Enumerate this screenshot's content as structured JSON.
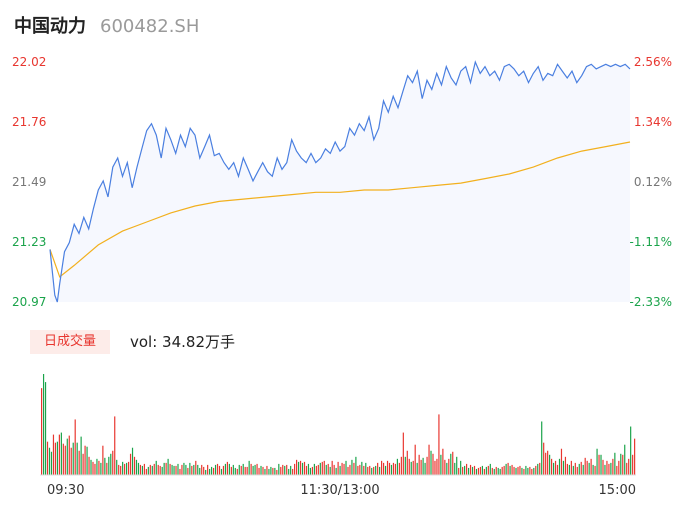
{
  "header": {
    "name": "中国动力",
    "code": "600482.SH"
  },
  "volume_panel": {
    "badge": "日成交量",
    "value_label": "vol: 34.82万手"
  },
  "colors": {
    "up": "#e8362f",
    "down": "#1aa34a",
    "flat": "#777777",
    "price_line": "#4a7fe0",
    "price_fill": "#f6f8fe",
    "avg_line": "#f2b01e"
  },
  "chart_data": [
    {
      "type": "line",
      "title": "",
      "left_axis_ticks": [
        "22.02",
        "21.76",
        "21.49",
        "21.23",
        "20.97"
      ],
      "right_axis_ticks": [
        "2.56%",
        "1.34%",
        "0.12%",
        "-1.11%",
        "-2.33%"
      ],
      "ylim": [
        20.97,
        22.02
      ],
      "x_range": [
        0,
        240
      ],
      "x_ticks": [
        "09:30",
        "11:30/13:00",
        "15:00"
      ],
      "series": [
        {
          "role": "price",
          "x": [
            0,
            2,
            3,
            4,
            6,
            8,
            10,
            12,
            14,
            16,
            18,
            20,
            22,
            24,
            26,
            28,
            30,
            32,
            34,
            36,
            38,
            40,
            42,
            44,
            46,
            48,
            50,
            52,
            54,
            56,
            58,
            60,
            62,
            64,
            66,
            68,
            70,
            72,
            74,
            76,
            78,
            80,
            82,
            84,
            86,
            88,
            90,
            92,
            94,
            96,
            98,
            100,
            102,
            104,
            106,
            108,
            110,
            112,
            114,
            116,
            118,
            120,
            122,
            124,
            126,
            128,
            130,
            132,
            134,
            136,
            138,
            140,
            142,
            144,
            146,
            148,
            150,
            152,
            154,
            156,
            158,
            160,
            162,
            164,
            166,
            168,
            170,
            172,
            174,
            176,
            178,
            180,
            182,
            184,
            186,
            188,
            190,
            192,
            194,
            196,
            198,
            200,
            202,
            204,
            206,
            208,
            210,
            212,
            214,
            216,
            218,
            220,
            222,
            224,
            226,
            228,
            230,
            232,
            234,
            236,
            238,
            240
          ],
          "y": [
            21.2,
            21.0,
            20.97,
            21.05,
            21.19,
            21.23,
            21.31,
            21.27,
            21.34,
            21.29,
            21.38,
            21.46,
            21.5,
            21.43,
            21.56,
            21.6,
            21.52,
            21.58,
            21.47,
            21.56,
            21.64,
            21.72,
            21.75,
            21.7,
            21.6,
            21.73,
            21.68,
            21.62,
            21.7,
            21.65,
            21.73,
            21.7,
            21.6,
            21.65,
            21.7,
            21.61,
            21.62,
            21.58,
            21.55,
            21.58,
            21.52,
            21.6,
            21.55,
            21.5,
            21.54,
            21.58,
            21.54,
            21.52,
            21.6,
            21.55,
            21.58,
            21.68,
            21.63,
            21.6,
            21.58,
            21.62,
            21.58,
            21.6,
            21.64,
            21.62,
            21.67,
            21.63,
            21.65,
            21.73,
            21.7,
            21.75,
            21.72,
            21.78,
            21.68,
            21.73,
            21.85,
            21.8,
            21.87,
            21.82,
            21.89,
            21.96,
            21.93,
            21.98,
            21.86,
            21.94,
            21.9,
            21.97,
            21.92,
            22.0,
            21.95,
            21.92,
            21.98,
            22.0,
            21.93,
            22.02,
            21.97,
            22.0,
            21.96,
            21.98,
            21.94,
            22.0,
            22.01,
            21.99,
            21.96,
            21.98,
            21.93,
            21.97,
            22.0,
            21.94,
            21.97,
            21.96,
            22.01,
            21.98,
            21.95,
            21.98,
            21.93,
            21.96,
            22.0,
            22.01,
            21.99,
            22.0,
            22.01,
            22.0,
            22.01,
            22.0,
            22.01,
            21.99
          ]
        },
        {
          "role": "average",
          "x": [
            0,
            4,
            10,
            20,
            30,
            40,
            50,
            60,
            70,
            80,
            90,
            100,
            110,
            120,
            130,
            140,
            150,
            160,
            170,
            180,
            190,
            200,
            210,
            220,
            230,
            240
          ],
          "y": [
            21.2,
            21.08,
            21.13,
            21.22,
            21.28,
            21.32,
            21.36,
            21.39,
            21.41,
            21.42,
            21.43,
            21.44,
            21.45,
            21.45,
            21.46,
            21.46,
            21.47,
            21.48,
            21.49,
            21.51,
            21.53,
            21.56,
            21.6,
            21.63,
            21.65,
            21.67
          ]
        }
      ]
    },
    {
      "type": "bar",
      "title": "",
      "ylim": [
        0,
        100
      ],
      "values": [
        86,
        100,
        92,
        33,
        27,
        23,
        40,
        32,
        33,
        40,
        42,
        31,
        29,
        36,
        39,
        27,
        32,
        55,
        32,
        24,
        38,
        21,
        29,
        28,
        18,
        15,
        13,
        11,
        16,
        14,
        12,
        29,
        17,
        12,
        18,
        21,
        24,
        58,
        15,
        10,
        9,
        13,
        11,
        12,
        13,
        21,
        27,
        18,
        15,
        12,
        10,
        9,
        11,
        6,
        8,
        10,
        9,
        11,
        14,
        10,
        9,
        8,
        12,
        12,
        16,
        11,
        10,
        9,
        9,
        11,
        6,
        10,
        12,
        10,
        7,
        12,
        9,
        10,
        14,
        10,
        7,
        10,
        8,
        5,
        10,
        6,
        8,
        7,
        10,
        11,
        9,
        6,
        9,
        11,
        13,
        11,
        8,
        10,
        7,
        6,
        10,
        9,
        11,
        8,
        8,
        14,
        11,
        9,
        10,
        11,
        7,
        9,
        8,
        6,
        9,
        6,
        8,
        7,
        7,
        5,
        11,
        8,
        10,
        9,
        10,
        6,
        9,
        6,
        11,
        15,
        13,
        14,
        12,
        13,
        9,
        11,
        7,
        8,
        11,
        9,
        10,
        12,
        13,
        14,
        10,
        11,
        8,
        14,
        10,
        7,
        13,
        9,
        12,
        11,
        14,
        8,
        10,
        15,
        12,
        18,
        9,
        10,
        13,
        9,
        12,
        8,
        9,
        7,
        8,
        9,
        12,
        8,
        14,
        12,
        9,
        14,
        12,
        10,
        12,
        11,
        16,
        12,
        18,
        42,
        18,
        24,
        16,
        13,
        14,
        30,
        12,
        20,
        15,
        17,
        12,
        18,
        30,
        24,
        21,
        14,
        16,
        60,
        20,
        26,
        15,
        12,
        16,
        21,
        23,
        12,
        18,
        7,
        14,
        8,
        9,
        11,
        7,
        10,
        8,
        9,
        6,
        7,
        8,
        9,
        6,
        8,
        9,
        11,
        7,
        6,
        8,
        7,
        6,
        8,
        9,
        11,
        12,
        9,
        10,
        8,
        7,
        8,
        9,
        7,
        6,
        9,
        7,
        8,
        6,
        7,
        9,
        11,
        12,
        53,
        32,
        22,
        24,
        20,
        16,
        12,
        14,
        10,
        16,
        26,
        14,
        18,
        11,
        10,
        14,
        9,
        12,
        8,
        11,
        13,
        10,
        17,
        14,
        12,
        16,
        10,
        9,
        26,
        20,
        20,
        15,
        10,
        14,
        11,
        12,
        16,
        22,
        9,
        14,
        21,
        20,
        30,
        12,
        16,
        48,
        20,
        36
      ],
      "colors": [
        "up",
        "down",
        "down",
        "up",
        "down",
        "down",
        "up",
        "up",
        "down",
        "up",
        "down",
        "up",
        "up",
        "down",
        "up",
        "up",
        "down",
        "up",
        "down",
        "up",
        "down",
        "up",
        "up",
        "down",
        "up",
        "down",
        "up",
        "up",
        "down",
        "up",
        "down",
        "up",
        "down",
        "up",
        "down",
        "down",
        "up",
        "up",
        "down",
        "up",
        "up",
        "down",
        "up",
        "down",
        "up",
        "up",
        "down",
        "up",
        "down",
        "down",
        "up",
        "down",
        "up",
        "up",
        "down",
        "up",
        "down",
        "up",
        "down",
        "up",
        "up",
        "down",
        "down",
        "up",
        "down",
        "up",
        "down",
        "down",
        "up",
        "down",
        "up",
        "up",
        "down",
        "down",
        "up",
        "down",
        "up",
        "down",
        "up",
        "down",
        "down",
        "up",
        "up",
        "down",
        "up",
        "down",
        "down",
        "up",
        "down",
        "up",
        "up",
        "down",
        "up",
        "down",
        "up",
        "down",
        "up",
        "down",
        "down",
        "up",
        "down",
        "up",
        "down",
        "up",
        "up",
        "down",
        "up",
        "down",
        "down",
        "up",
        "up",
        "down",
        "up",
        "down",
        "up",
        "down",
        "down",
        "up",
        "down",
        "up",
        "down",
        "up",
        "up",
        "down",
        "up",
        "down",
        "down",
        "up",
        "up",
        "up",
        "down",
        "up",
        "down",
        "up",
        "up",
        "down",
        "down",
        "up",
        "down",
        "up",
        "up",
        "down",
        "up",
        "up",
        "down",
        "up",
        "down",
        "up",
        "up",
        "down",
        "up",
        "down",
        "up",
        "up",
        "down",
        "up",
        "up",
        "down",
        "up",
        "down",
        "up",
        "up",
        "down",
        "up",
        "down",
        "up",
        "up",
        "down",
        "up",
        "down",
        "up",
        "down",
        "up",
        "up",
        "down",
        "up",
        "up",
        "down",
        "up",
        "up",
        "down",
        "up",
        "up",
        "up",
        "down",
        "up",
        "up",
        "down",
        "up",
        "up",
        "down",
        "up",
        "up",
        "down",
        "down",
        "up",
        "up",
        "down",
        "up",
        "up",
        "up",
        "up",
        "down",
        "up",
        "up",
        "down",
        "up",
        "down",
        "up",
        "down",
        "down",
        "up",
        "down",
        "up",
        "down",
        "up",
        "down",
        "up",
        "down",
        "up",
        "down",
        "up",
        "up",
        "down",
        "up",
        "down",
        "up",
        "down",
        "up",
        "down",
        "up",
        "down",
        "down",
        "up",
        "up",
        "down",
        "up",
        "down",
        "up",
        "up",
        "down",
        "up",
        "up",
        "down",
        "up",
        "down",
        "down",
        "up",
        "up",
        "down",
        "up",
        "down",
        "up",
        "down",
        "up",
        "up",
        "up",
        "down",
        "up",
        "down",
        "up",
        "up",
        "down",
        "up",
        "down",
        "up",
        "up",
        "down",
        "up",
        "down",
        "up",
        "up",
        "down",
        "up",
        "down",
        "up",
        "up",
        "down",
        "up",
        "down",
        "up",
        "down",
        "up",
        "down",
        "up",
        "down",
        "up",
        "up",
        "down",
        "up",
        "down",
        "up",
        "up",
        "down",
        "up",
        "down",
        "up",
        "up",
        "down",
        "up",
        "up",
        "down",
        "up",
        "up",
        "flat"
      ]
    }
  ]
}
